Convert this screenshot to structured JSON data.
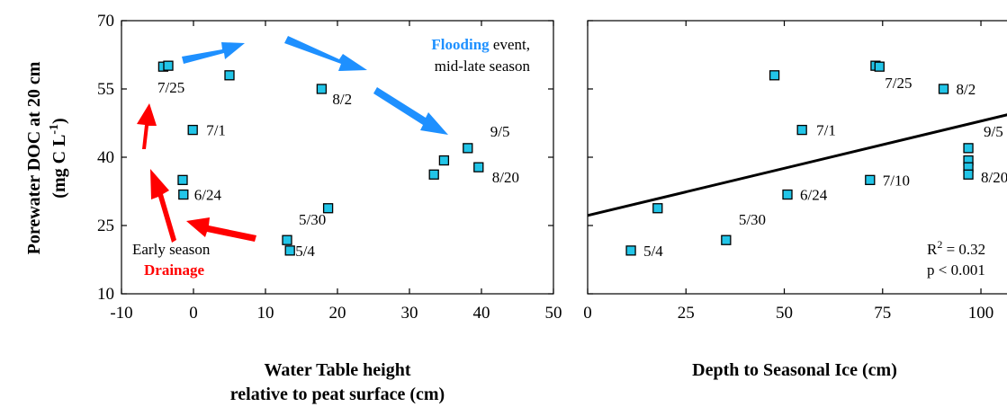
{
  "chart_data": [
    {
      "type": "scatter",
      "xlabel": [
        "Water Table height",
        "relative to peat surface (cm)"
      ],
      "ylabel": [
        "Porewater DOC at 20 cm",
        "(mg C L",
        "-1",
        ")"
      ],
      "xlim": [
        -10,
        50
      ],
      "ylim": [
        10,
        70
      ],
      "xticks": [
        "-10",
        "0",
        "10",
        "20",
        "30",
        "40",
        "50"
      ],
      "yticks": [
        "10",
        "25",
        "40",
        "55",
        "70"
      ],
      "grid": false,
      "points": [
        {
          "x": -4.2,
          "y": 59.9,
          "label": ""
        },
        {
          "x": -3.5,
          "y": 60.1,
          "label": "7/25"
        },
        {
          "x": 5.0,
          "y": 58.0,
          "label": ""
        },
        {
          "x": 17.8,
          "y": 55.0,
          "label": "8/2"
        },
        {
          "x": -0.1,
          "y": 46.0,
          "label": "7/1"
        },
        {
          "x": 38.1,
          "y": 42.0,
          "label": "9/5"
        },
        {
          "x": 34.8,
          "y": 39.3,
          "label": ""
        },
        {
          "x": 39.6,
          "y": 37.8,
          "label": "8/20"
        },
        {
          "x": 33.4,
          "y": 36.2,
          "label": ""
        },
        {
          "x": -1.5,
          "y": 35.0,
          "label": ""
        },
        {
          "x": -1.4,
          "y": 31.8,
          "label": "6/24"
        },
        {
          "x": 18.7,
          "y": 28.8,
          "label": ""
        },
        {
          "x": 13.0,
          "y": 21.8,
          "label": "5/30"
        },
        {
          "x": 13.4,
          "y": 19.5,
          "label": "5/4"
        }
      ],
      "annotations": {
        "flooding_word": "Flooding",
        "flooding_rest": " event,",
        "flooding_line2": "mid-late season",
        "early_season": "Early season",
        "drainage": "Drainage"
      },
      "colors": {
        "marker": "#22c5e8",
        "flood_arrow": "#1e90ff",
        "drain_arrow": "#ff0000"
      }
    },
    {
      "type": "scatter",
      "xlabel": [
        "Depth to Seasonal Ice (cm)"
      ],
      "xlim": [
        0,
        108
      ],
      "ylim": [
        10,
        70
      ],
      "xticks": [
        "0",
        "25",
        "50",
        "75",
        "100"
      ],
      "grid": false,
      "points": [
        {
          "x": 11.0,
          "y": 19.5,
          "label": "5/4"
        },
        {
          "x": 17.8,
          "y": 28.8,
          "label": ""
        },
        {
          "x": 35.2,
          "y": 21.8,
          "label": "5/30"
        },
        {
          "x": 47.5,
          "y": 58.0,
          "label": ""
        },
        {
          "x": 50.8,
          "y": 31.8,
          "label": "6/24"
        },
        {
          "x": 54.5,
          "y": 46.0,
          "label": "7/1"
        },
        {
          "x": 71.8,
          "y": 35.0,
          "label": "7/10"
        },
        {
          "x": 73.2,
          "y": 60.1,
          "label": ""
        },
        {
          "x": 74.2,
          "y": 59.9,
          "label": "7/25"
        },
        {
          "x": 90.5,
          "y": 55.0,
          "label": "8/2"
        },
        {
          "x": 96.8,
          "y": 42.0,
          "label": "9/5"
        },
        {
          "x": 96.8,
          "y": 39.3,
          "label": ""
        },
        {
          "x": 96.8,
          "y": 37.8,
          "label": "8/20"
        },
        {
          "x": 96.8,
          "y": 36.2,
          "label": ""
        }
      ],
      "trendline": {
        "x0": 0,
        "y0": 27.2,
        "x1": 108,
        "y1": 49.6
      },
      "stats": {
        "r2_prefix": "R",
        "r2_sup": "2",
        "r2_value": " = 0.32",
        "p_text": "p < 0.001"
      },
      "colors": {
        "marker": "#22c5e8",
        "line": "#000000"
      }
    }
  ]
}
